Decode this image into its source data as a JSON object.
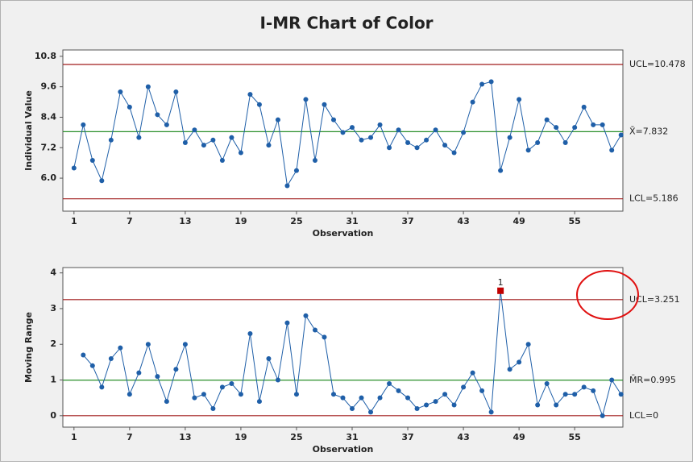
{
  "title": "I-MR Chart of Color",
  "chart_data": [
    {
      "type": "line",
      "ylabel": "Individual Value",
      "xlabel": "Observation",
      "color": "#1f5fa8",
      "x": [
        1,
        2,
        3,
        4,
        5,
        6,
        7,
        8,
        9,
        10,
        11,
        12,
        13,
        14,
        15,
        16,
        17,
        18,
        19,
        20,
        21,
        22,
        23,
        24,
        25,
        26,
        27,
        28,
        29,
        30,
        31,
        32,
        33,
        34,
        35,
        36,
        37,
        38,
        39,
        40,
        41,
        42,
        43,
        44,
        45,
        46,
        47,
        48,
        49,
        50,
        51,
        52,
        53,
        54,
        55,
        56,
        57,
        58,
        59,
        60
      ],
      "values": [
        6.4,
        8.1,
        6.7,
        5.9,
        7.5,
        9.4,
        8.8,
        7.6,
        9.6,
        8.5,
        8.1,
        9.4,
        7.4,
        7.9,
        7.3,
        7.5,
        6.7,
        7.6,
        7.0,
        9.3,
        8.9,
        7.3,
        8.3,
        5.7,
        6.3,
        9.1,
        6.7,
        8.9,
        8.3,
        7.8,
        8.0,
        7.5,
        7.6,
        8.1,
        7.2,
        7.9,
        7.4,
        7.2,
        7.5,
        7.9,
        7.3,
        7.0,
        7.8,
        9.0,
        9.7,
        9.8,
        6.3,
        7.6,
        9.1,
        7.1,
        7.4,
        8.3,
        8.0,
        7.4,
        8.0,
        8.8,
        8.1,
        8.1,
        7.1,
        7.7
      ],
      "xlim": [
        -0.2,
        60.2
      ],
      "xticks": [
        1,
        7,
        13,
        19,
        25,
        31,
        37,
        43,
        49,
        55
      ],
      "ylim": [
        4.7,
        11.05
      ],
      "yticks": [
        {
          "value": 6.0,
          "label": "6.0"
        },
        7.2,
        8.4,
        9.6,
        10.8
      ],
      "control_lines": [
        {
          "value": 10.478,
          "label": "UCL=10.478",
          "color": "#a01c1c"
        },
        {
          "value": 7.832,
          "label": "X̄=7.832",
          "color": "#2a8f2a"
        },
        {
          "value": 5.186,
          "label": "LCL=5.186",
          "color": "#a01c1c"
        }
      ]
    },
    {
      "type": "line",
      "ylabel": "Moving Range",
      "xlabel": "Observation",
      "color": "#1f5fa8",
      "x": [
        2,
        3,
        4,
        5,
        6,
        7,
        8,
        9,
        10,
        11,
        12,
        13,
        14,
        15,
        16,
        17,
        18,
        19,
        20,
        21,
        22,
        23,
        24,
        25,
        26,
        27,
        28,
        29,
        30,
        31,
        32,
        33,
        34,
        35,
        36,
        37,
        38,
        39,
        40,
        41,
        42,
        43,
        44,
        45,
        46,
        47,
        48,
        49,
        50,
        51,
        52,
        53,
        54,
        55,
        56,
        57,
        58,
        59,
        60
      ],
      "values": [
        1.7,
        1.4,
        0.8,
        1.6,
        1.9,
        0.6,
        1.2,
        2.0,
        1.1,
        0.4,
        1.3,
        2.0,
        0.5,
        0.6,
        0.2,
        0.8,
        0.9,
        0.6,
        2.3,
        0.4,
        1.6,
        1.0,
        2.6,
        0.6,
        2.8,
        2.4,
        2.2,
        0.6,
        0.5,
        0.2,
        0.5,
        0.1,
        0.5,
        0.9,
        0.7,
        0.5,
        0.2,
        0.3,
        0.4,
        0.6,
        0.3,
        0.8,
        1.2,
        0.7,
        0.1,
        3.5,
        1.3,
        1.5,
        2.0,
        0.3,
        0.9,
        0.3,
        0.6,
        0.6,
        0.8,
        0.7,
        0.0,
        1.0,
        0.6
      ],
      "xlim": [
        -0.2,
        60.2
      ],
      "xticks": [
        1,
        7,
        13,
        19,
        25,
        31,
        37,
        43,
        49,
        55
      ],
      "ylim": [
        -0.32,
        4.15
      ],
      "yticks": [
        0,
        1,
        2,
        3,
        4
      ],
      "control_lines": [
        {
          "value": 3.251,
          "label": "UCL=3.251",
          "color": "#a01c1c"
        },
        {
          "value": 0.995,
          "label": "M̄R=0.995",
          "color": "#2a8f2a"
        },
        {
          "value": 0,
          "label": "LCL=0",
          "color": "#a01c1c"
        }
      ],
      "flag_color": "#c00000",
      "test_label": "1"
    }
  ]
}
